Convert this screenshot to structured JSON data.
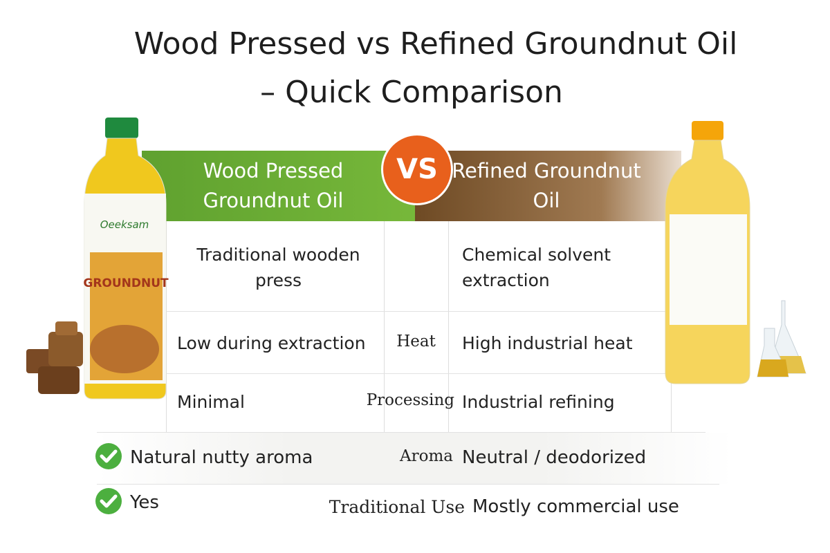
{
  "header": {
    "title_line1": "Wood Pressed vs Refined Groundnut Oil",
    "title_line2": "– Quick Comparison"
  },
  "comparison": {
    "left_heading": "Wood Pressed Groundnut Oil",
    "vs": "VS",
    "right_heading": "Refined Groundnut Oil",
    "rows": [
      {
        "left": "Traditional wooden press",
        "right": "Chemical solvent extraction"
      },
      {
        "left": "Low during extraction",
        "label": "Heat",
        "right": "High industrial heat"
      },
      {
        "left": "Minimal",
        "label": "Processing",
        "right": "Industrial refining"
      },
      {
        "left": "Natural nutty aroma",
        "label": "Aroma",
        "right": "Neutral / deodorized"
      },
      {
        "left": "Yes",
        "label": "Traditional Use",
        "right": "Mostly commercial use"
      }
    ]
  },
  "bottle_label": {
    "brand": "Oeeksam",
    "product": "GROUNDNUT"
  }
}
